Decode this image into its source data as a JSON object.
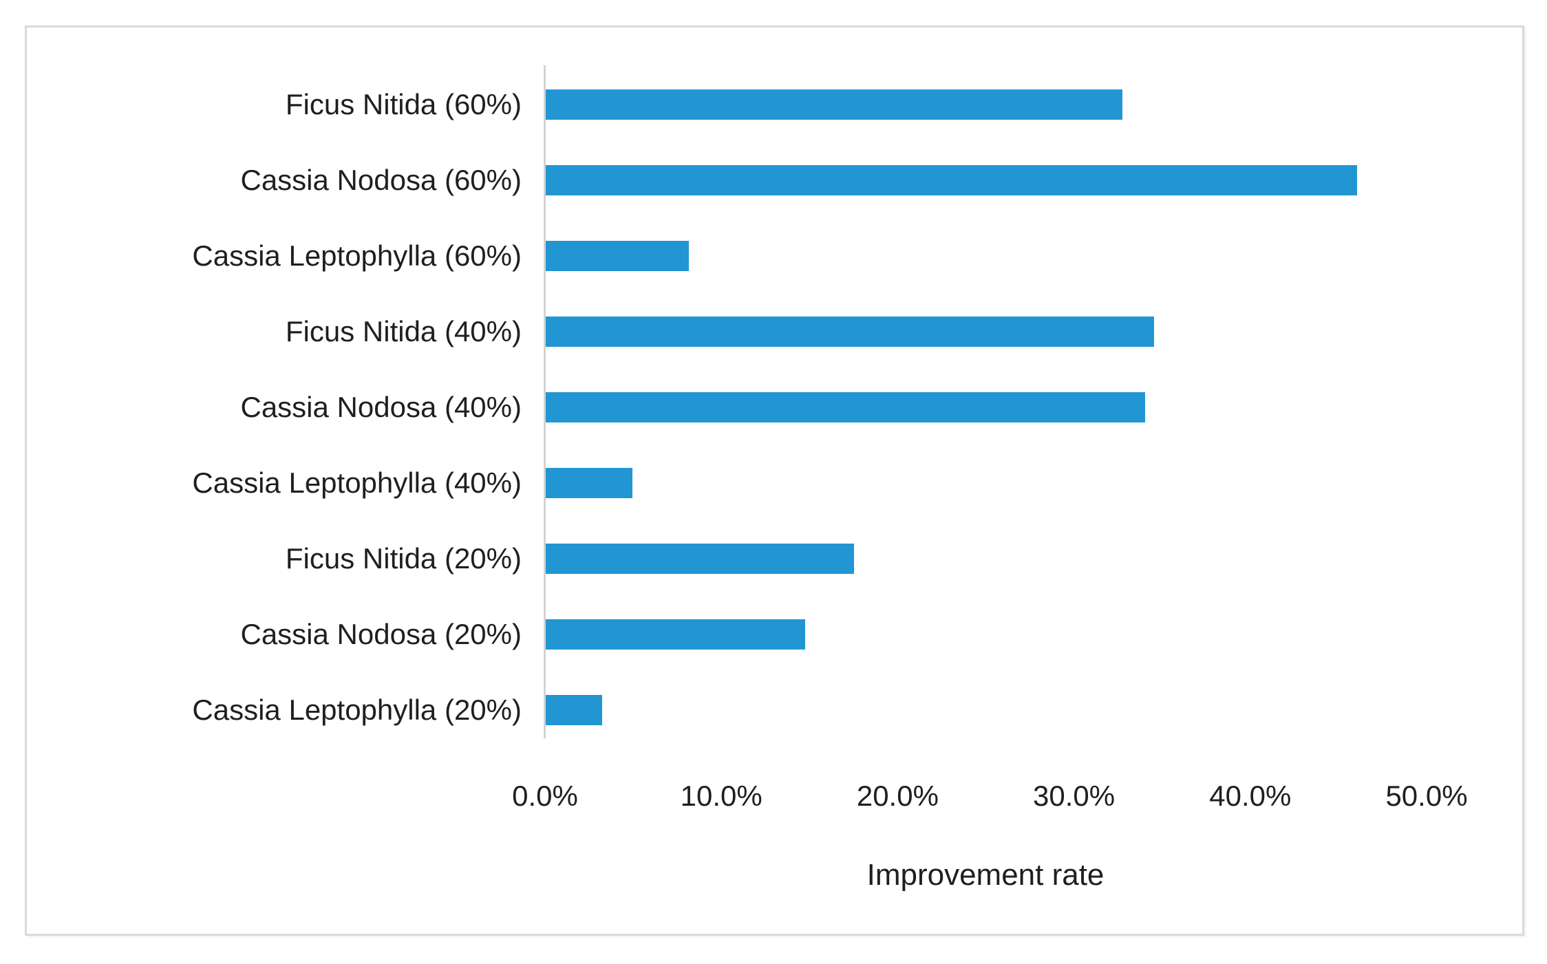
{
  "chart_data": {
    "type": "bar",
    "orientation": "horizontal",
    "title": "",
    "xlabel": "Improvement rate",
    "ylabel": "",
    "categories": [
      "Ficus Nitida (60%)",
      "Cassia Nodosa (60%)",
      "Cassia Leptophylla (60%)",
      "Ficus Nitida (40%)",
      "Cassia Nodosa (40%)",
      "Cassia Leptophylla (40%)",
      "Ficus Nitida (20%)",
      "Cassia Nodosa (20%)",
      "Cassia Leptophylla (20%)"
    ],
    "values": [
      32.7,
      46.0,
      8.1,
      34.5,
      34.0,
      4.9,
      17.5,
      14.7,
      3.2
    ],
    "value_unit": "%",
    "xlim": [
      0,
      50
    ],
    "x_tick_labels": [
      "0.0%",
      "10.0%",
      "20.0%",
      "30.0%",
      "40.0%",
      "50.0%"
    ],
    "x_tick_values": [
      0,
      10,
      20,
      30,
      40,
      50
    ],
    "grid": false,
    "legend": false,
    "colors": {
      "bar": "#2196d3",
      "axis_line": "#d2d2d2",
      "frame_border": "#d9d9d9",
      "text": "#1f1f1f",
      "background": "#ffffff"
    }
  }
}
